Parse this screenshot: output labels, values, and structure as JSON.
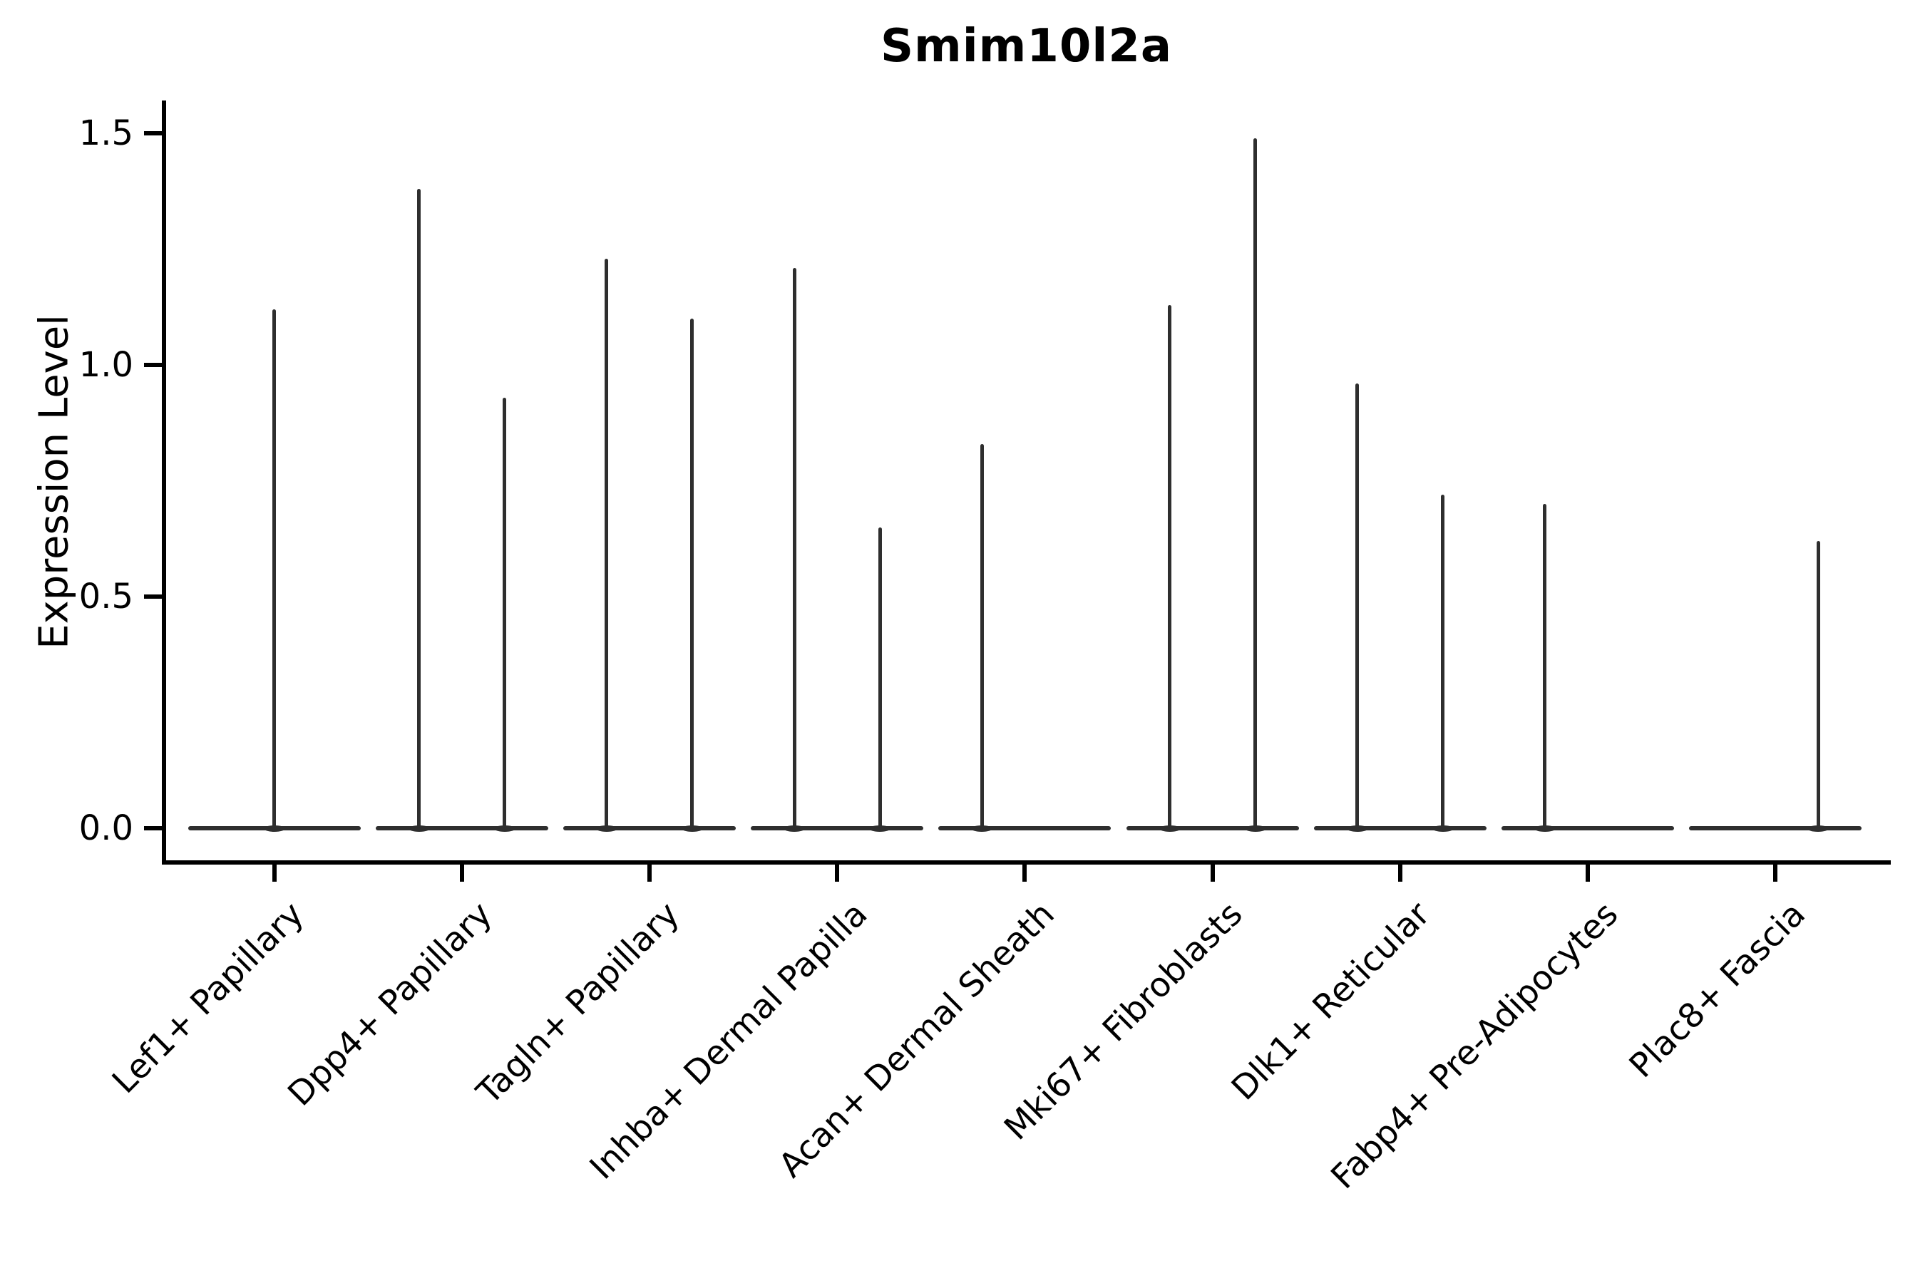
{
  "chart_data": {
    "type": "violin",
    "title": "Smim10l2a",
    "ylabel": "Expression Level",
    "xlabel": "",
    "yticks": [
      {
        "value": 0.0,
        "label": "0.0"
      },
      {
        "value": 0.5,
        "label": "0.5"
      },
      {
        "value": 1.0,
        "label": "1.0"
      },
      {
        "value": 1.5,
        "label": "1.5"
      }
    ],
    "ylim": [
      -0.07,
      1.57
    ],
    "grid": "off",
    "legend": "none",
    "baseline_value": 0.0,
    "categories": [
      "Lef1+ Papillary",
      "Dpp4+ Papillary",
      "Tagln+ Papillary",
      "Inhba+ Dermal Papilla",
      "Acan+ Dermal Sheath",
      "Mki67+ Fibroblasts",
      "Dlk1+ Reticular",
      "Fabp4+ Pre-Adipocytes",
      "Plac8+ Fascia"
    ],
    "violins": [
      {
        "category": "Lef1+ Papillary",
        "spikes": [
          {
            "slot": "center",
            "max": 1.12
          }
        ]
      },
      {
        "category": "Dpp4+ Papillary",
        "spikes": [
          {
            "slot": "left",
            "max": 1.38
          },
          {
            "slot": "right",
            "max": 0.93
          }
        ]
      },
      {
        "category": "Tagln+ Papillary",
        "spikes": [
          {
            "slot": "left",
            "max": 1.23
          },
          {
            "slot": "right",
            "max": 1.1
          }
        ]
      },
      {
        "category": "Inhba+ Dermal Papilla",
        "spikes": [
          {
            "slot": "left",
            "max": 1.21
          },
          {
            "slot": "right",
            "max": 0.65
          }
        ]
      },
      {
        "category": "Acan+ Dermal Sheath",
        "spikes": [
          {
            "slot": "left",
            "max": 0.83
          }
        ]
      },
      {
        "category": "Mki67+ Fibroblasts",
        "spikes": [
          {
            "slot": "left",
            "max": 1.13
          },
          {
            "slot": "right",
            "max": 1.49
          }
        ]
      },
      {
        "category": "Dlk1+ Reticular",
        "spikes": [
          {
            "slot": "left",
            "max": 0.96
          },
          {
            "slot": "right",
            "max": 0.72
          }
        ]
      },
      {
        "category": "Fabp4+ Pre-Adipocytes",
        "spikes": [
          {
            "slot": "left",
            "max": 0.7
          }
        ]
      },
      {
        "category": "Plac8+ Fascia",
        "spikes": [
          {
            "slot": "right",
            "max": 0.62
          }
        ]
      }
    ],
    "colors": {
      "violin": "#2e2e2e",
      "axis": "#000000",
      "text": "#000000",
      "background": "#ffffff"
    }
  }
}
